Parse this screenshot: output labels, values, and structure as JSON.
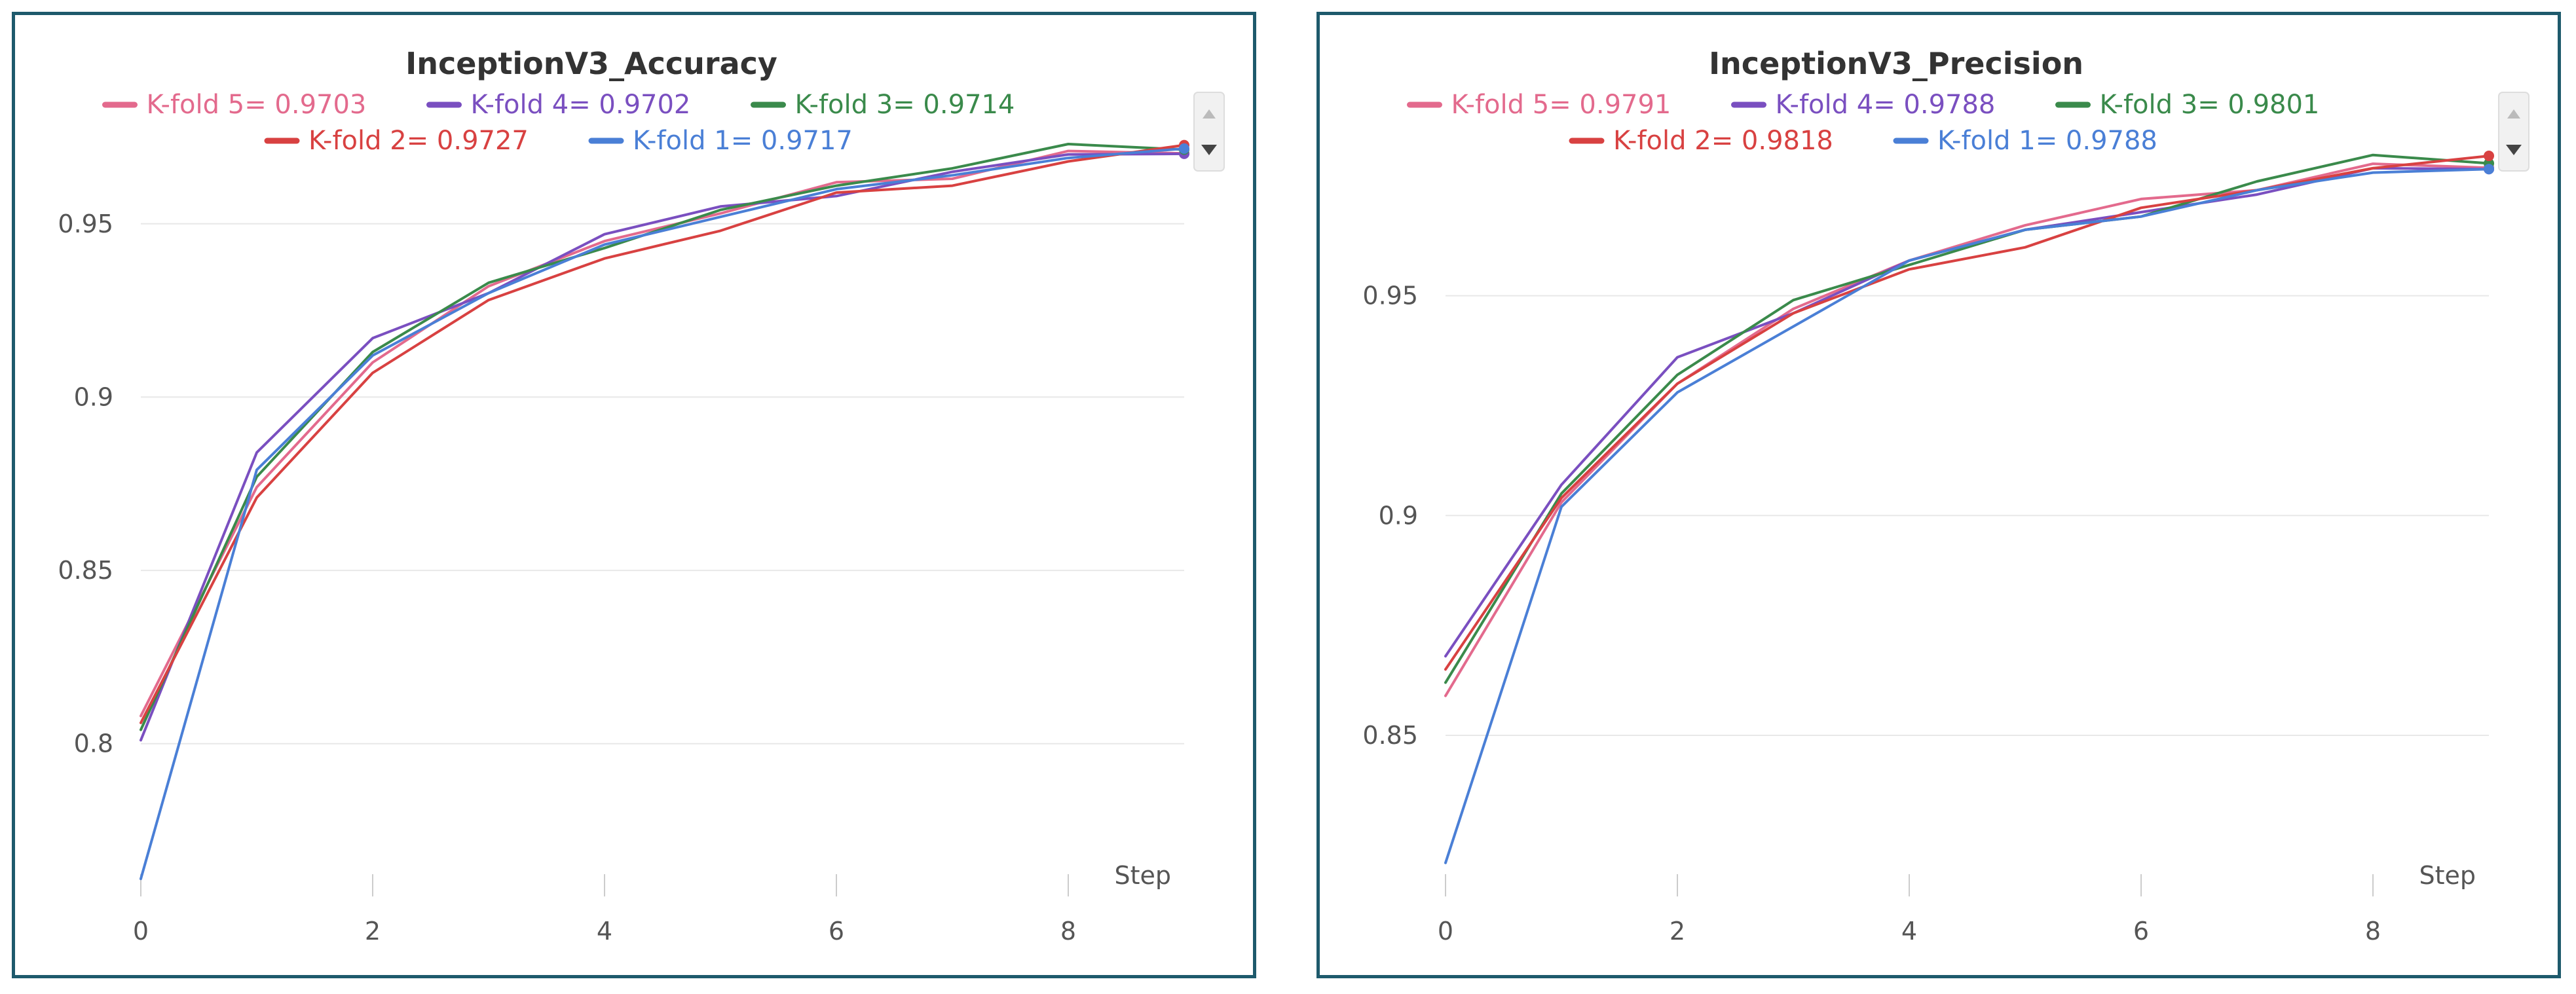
{
  "chart_data": [
    {
      "type": "line",
      "title": "InceptionV3_Accuracy",
      "xlabel": "Step",
      "ylabel": "",
      "xlim": [
        0,
        9
      ],
      "ylim": [
        0.758,
        0.98
      ],
      "xticks": [
        0,
        2,
        4,
        6,
        8
      ],
      "xtick_labels": [
        "0",
        "2",
        "4",
        "6",
        "8"
      ],
      "yticks": [
        0.8,
        0.85,
        0.9,
        0.95
      ],
      "ytick_labels": [
        "0.8",
        "0.85",
        "0.9",
        "0.95"
      ],
      "grid": true,
      "legend_position": "top",
      "x": [
        0,
        1,
        2,
        3,
        4,
        5,
        6,
        7,
        8,
        9
      ],
      "series": [
        {
          "name": "K-fold 5",
          "legend": "K-fold 5= 0.9703",
          "color": "#e36a8d",
          "values": [
            0.808,
            0.874,
            0.91,
            0.932,
            0.945,
            0.953,
            0.962,
            0.963,
            0.971,
            0.9703
          ]
        },
        {
          "name": "K-fold 4",
          "legend": "K-fold 4= 0.9702",
          "color": "#7a4fc0",
          "values": [
            0.801,
            0.884,
            0.917,
            0.93,
            0.947,
            0.955,
            0.958,
            0.965,
            0.97,
            0.9702
          ]
        },
        {
          "name": "K-fold 3",
          "legend": "K-fold 3= 0.9714",
          "color": "#3a8a4b",
          "values": [
            0.804,
            0.877,
            0.913,
            0.933,
            0.943,
            0.954,
            0.961,
            0.966,
            0.973,
            0.9714
          ]
        },
        {
          "name": "K-fold 2",
          "legend": "K-fold 2= 0.9727",
          "color": "#d84141",
          "values": [
            0.806,
            0.871,
            0.907,
            0.928,
            0.94,
            0.948,
            0.959,
            0.961,
            0.968,
            0.9727
          ]
        },
        {
          "name": "K-fold 1",
          "legend": "K-fold 1= 0.9717",
          "color": "#4a7fd6",
          "values": [
            0.761,
            0.879,
            0.912,
            0.93,
            0.944,
            0.952,
            0.96,
            0.964,
            0.969,
            0.9717
          ]
        }
      ]
    },
    {
      "type": "line",
      "title": "InceptionV3_Precision",
      "xlabel": "Step",
      "ylabel": "",
      "xlim": [
        0,
        9
      ],
      "ylim": [
        0.815,
        0.99
      ],
      "xticks": [
        0,
        2,
        4,
        6,
        8
      ],
      "xtick_labels": [
        "0",
        "2",
        "4",
        "6",
        "8"
      ],
      "yticks": [
        0.85,
        0.9,
        0.95
      ],
      "ytick_labels": [
        "0.85",
        "0.9",
        "0.95"
      ],
      "grid": true,
      "legend_position": "top",
      "x": [
        0,
        1,
        2,
        3,
        4,
        5,
        6,
        7,
        8,
        9
      ],
      "series": [
        {
          "name": "K-fold 5",
          "legend": "K-fold 5= 0.9791",
          "color": "#e36a8d",
          "values": [
            0.859,
            0.903,
            0.93,
            0.947,
            0.958,
            0.966,
            0.972,
            0.974,
            0.98,
            0.9791
          ]
        },
        {
          "name": "K-fold 4",
          "legend": "K-fold 4= 0.9788",
          "color": "#7a4fc0",
          "values": [
            0.868,
            0.907,
            0.936,
            0.946,
            0.958,
            0.965,
            0.969,
            0.973,
            0.979,
            0.9788
          ]
        },
        {
          "name": "K-fold 3",
          "legend": "K-fold 3= 0.9801",
          "color": "#3a8a4b",
          "values": [
            0.862,
            0.905,
            0.932,
            0.949,
            0.957,
            0.965,
            0.968,
            0.976,
            0.982,
            0.9801
          ]
        },
        {
          "name": "K-fold 2",
          "legend": "K-fold 2= 0.9818",
          "color": "#d84141",
          "values": [
            0.865,
            0.904,
            0.93,
            0.946,
            0.956,
            0.961,
            0.97,
            0.974,
            0.979,
            0.9818
          ]
        },
        {
          "name": "K-fold 1",
          "legend": "K-fold 1= 0.9788",
          "color": "#4a7fd6",
          "values": [
            0.821,
            0.902,
            0.928,
            0.943,
            0.958,
            0.965,
            0.968,
            0.974,
            0.978,
            0.9788
          ]
        }
      ]
    }
  ]
}
